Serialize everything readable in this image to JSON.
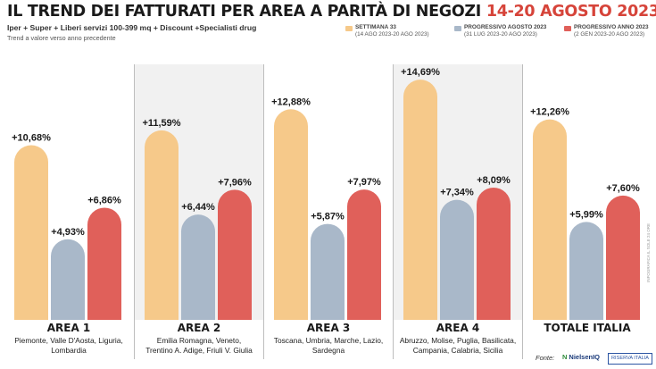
{
  "title": {
    "main": "IL TREND DEI FATTURATI PER AREA A PARITÀ DI NEGOZI",
    "period": "14-20 AGOSTO 2023"
  },
  "subtitle": "Iper + Super + Liberi servizi 100-399 mq + Discount +Specialisti drug",
  "note": "Trend a valore verso anno precedente",
  "legend": [
    {
      "name": "SETTIMANA 33",
      "range": "(14 AGO 2023-20 AGO 2023)",
      "color": "#f6c98a"
    },
    {
      "name": "PROGRESSIVO AGOSTO 2023",
      "range": "(31 LUG 2023-20 AGO 2023)",
      "color": "#a9b8c9"
    },
    {
      "name": "PROGRESSIVO ANNO 2023",
      "range": "(2 GEN 2023-20 AGO 2023)",
      "color": "#e0605a"
    }
  ],
  "areas": [
    {
      "name": "AREA 1",
      "desc": [
        "Piemonte, Valle D'Aosta, Liguria,",
        "Lombardia"
      ]
    },
    {
      "name": "AREA 2",
      "desc": [
        "Emilia Romagna, Veneto,",
        "Trentino A. Adige, Friuli V. Giulia"
      ]
    },
    {
      "name": "AREA 3",
      "desc": [
        "Toscana, Umbria, Marche, Lazio,",
        "Sardegna"
      ]
    },
    {
      "name": "AREA 4",
      "desc": [
        "Abruzzo, Molise, Puglia, Basilicata,",
        "Campania, Calabria, Sicilia"
      ]
    },
    {
      "name": "TOTALE ITALIA",
      "desc": [
        "",
        ""
      ]
    }
  ],
  "chart_data": {
    "type": "bar",
    "categories": [
      "AREA 1",
      "AREA 2",
      "AREA 3",
      "AREA 4",
      "TOTALE ITALIA"
    ],
    "series": [
      {
        "name": "SETTIMANA 33",
        "values": [
          10.68,
          11.59,
          12.88,
          14.69,
          12.26
        ],
        "labels": [
          "+10,68%",
          "+11,59%",
          "+12,88%",
          "+14,69%",
          "+12,26%"
        ],
        "color": "#f6c98a"
      },
      {
        "name": "PROGRESSIVO AGOSTO 2023",
        "values": [
          4.93,
          6.44,
          5.87,
          7.34,
          5.99
        ],
        "labels": [
          "+4,93%",
          "+6,44%",
          "+5,87%",
          "+7,34%",
          "+5,99%"
        ],
        "color": "#a9b8c9"
      },
      {
        "name": "PROGRESSIVO ANNO 2023",
        "values": [
          6.86,
          7.96,
          7.97,
          8.09,
          7.6
        ],
        "labels": [
          "+6,86%",
          "+7,96%",
          "+7,97%",
          "+8,09%",
          "+7,60%"
        ],
        "color": "#e0605a"
      }
    ],
    "ylim": [
      0,
      16
    ],
    "grid": false,
    "legend_position": "top-right"
  },
  "footer": {
    "source_label": "Fonte:",
    "logo1": "NielsenIQ",
    "logo2": "RISERVA ITALIA"
  },
  "credit": "INFOGRAFICA IL SOLE 24 ORE"
}
